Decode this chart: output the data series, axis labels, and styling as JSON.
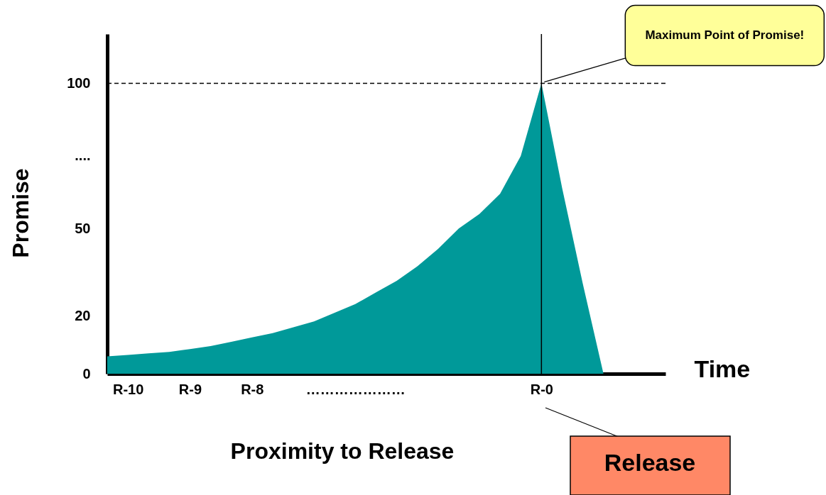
{
  "chart_data": {
    "type": "area",
    "xlabel": "Time",
    "ylabel": "Promise",
    "categories": [
      null,
      "R-10",
      null,
      null,
      "R-9",
      null,
      null,
      "R-8",
      null,
      null,
      null,
      null,
      "…………………",
      null,
      null,
      null,
      null,
      null,
      null,
      null,
      null,
      "R-0",
      null,
      null,
      null,
      null,
      null,
      null
    ],
    "series": [
      {
        "color": "#009999",
        "values": [
          6,
          6.5,
          7,
          7.5,
          8.5,
          9.5,
          11,
          12.5,
          14,
          16,
          18,
          21,
          24,
          28,
          32,
          37,
          43,
          50,
          55,
          62,
          75,
          100,
          64,
          31,
          0,
          null,
          null,
          null
        ]
      }
    ],
    "ylim": [
      0,
      117
    ],
    "yticks": [
      0,
      20,
      50,
      {
        "value": 75,
        "label": "...."
      },
      100
    ],
    "ref_lines": [
      {
        "axis": "y",
        "value": 100,
        "color": "#000000",
        "line_style": "dashed"
      },
      {
        "axis": "x",
        "value": "R-0",
        "color": "#000000",
        "line_style": "solid"
      }
    ],
    "annotations": [
      "Proximity to Release",
      {
        "text": "Maximum Point of Promise!",
        "x": "R-0",
        "y": 100
      },
      "Release"
    ]
  }
}
